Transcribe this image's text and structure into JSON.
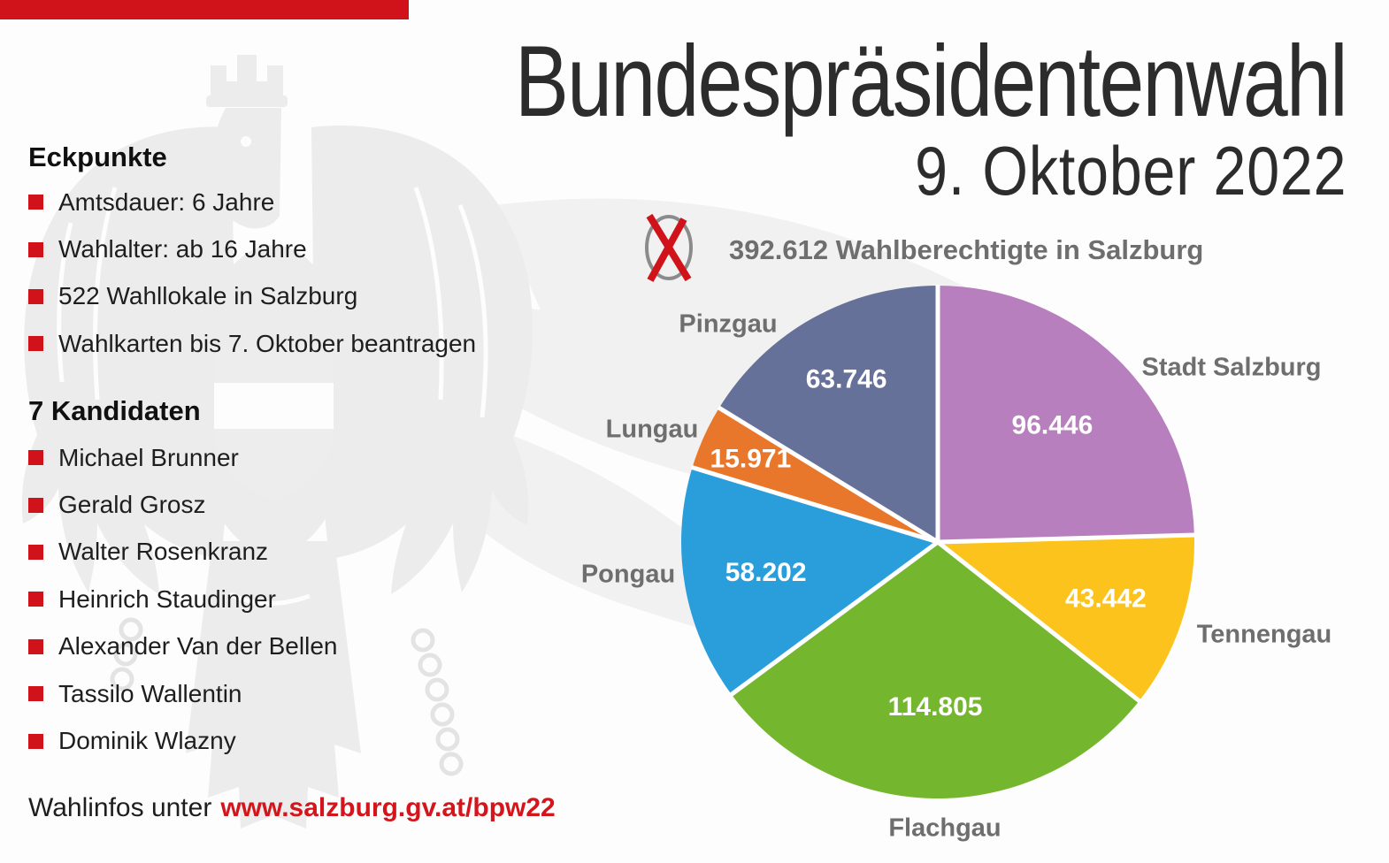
{
  "colors": {
    "accent_red": "#d0121a",
    "link_red": "#d4151c",
    "title_text": "#2c2c2c",
    "body_text": "#1e1e1e",
    "muted_gray": "#6e6e6e",
    "watermark_gray": "#ececec",
    "background": "#fdfdfd"
  },
  "header": {
    "title": "Bundespräsidentenwahl",
    "date": "9. Oktober 2022"
  },
  "eckpunkte": {
    "heading": "Eckpunkte",
    "items": [
      "Amtsdauer: 6 Jahre",
      "Wahlalter: ab 16 Jahre",
      "522 Wahllokale in Salzburg",
      "Wahlkarten bis 7. Oktober beantragen"
    ]
  },
  "kandidaten": {
    "heading": "7 Kandidaten",
    "items": [
      "Michael Brunner",
      "Gerald Grosz",
      "Walter Rosenkranz",
      "Heinrich Staudinger",
      "Alexander Van der Bellen",
      "Tassilo Wallentin",
      "Dominik Wlazny"
    ]
  },
  "eligible_voters": {
    "icon": "ballot-x-icon",
    "text": "392.612 Wahlberechtigte in Salzburg"
  },
  "footer": {
    "prefix": "Wahlinfos unter",
    "link_text": "www.salzburg.gv.at/bpw22"
  },
  "chart_data": {
    "type": "pie",
    "title": "392.612 Wahlberechtigte in Salzburg",
    "total": 392612,
    "start_angle_deg": 0,
    "direction": "clockwise",
    "legend_position": "outside-labels",
    "separator_color": "#ffffff",
    "slices": [
      {
        "label": "Stadt Salzburg",
        "value": 96446,
        "value_label": "96.446",
        "color": "#b77fbe",
        "label_r": 0.64
      },
      {
        "label": "Tennengau",
        "value": 43442,
        "value_label": "43.442",
        "color": "#fbc31b",
        "label_r": 0.69
      },
      {
        "label": "Flachgau",
        "value": 114805,
        "value_label": "114.805",
        "color": "#74b62e",
        "label_r": 0.64
      },
      {
        "label": "Pongau",
        "value": 58202,
        "value_label": "58.202",
        "color": "#2a9ddb",
        "label_r": 0.68
      },
      {
        "label": "Lungau",
        "value": 15971,
        "value_label": "15.971",
        "color": "#e8772b",
        "label_r": 0.8
      },
      {
        "label": "Pinzgau",
        "value": 63746,
        "value_label": "63.746",
        "color": "#667199",
        "label_r": 0.73
      }
    ]
  }
}
